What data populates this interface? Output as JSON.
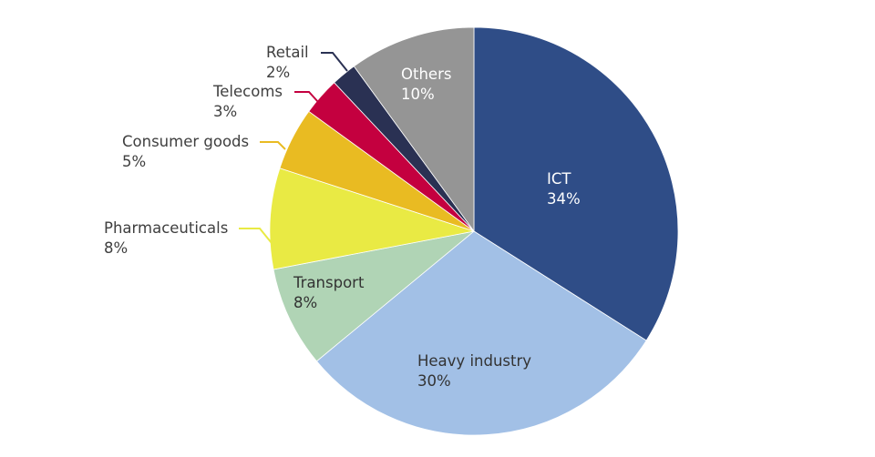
{
  "chart_data": {
    "type": "pie",
    "start_angle_deg": 0,
    "direction": "clockwise",
    "slices": [
      {
        "label": "ICT",
        "value": 34,
        "value_label": "34%",
        "color": "#2f4d87",
        "label_placement": "inside"
      },
      {
        "label": "Heavy industry",
        "value": 30,
        "value_label": "30%",
        "color": "#a2c0e6",
        "label_placement": "inside"
      },
      {
        "label": "Transport",
        "value": 8,
        "value_label": "8%",
        "color": "#b0d4b5",
        "label_placement": "inside"
      },
      {
        "label": "Pharmaceuticals",
        "value": 8,
        "value_label": "8%",
        "color": "#e9ea44",
        "label_placement": "outside"
      },
      {
        "label": "Consumer goods",
        "value": 5,
        "value_label": "5%",
        "color": "#e9bb22",
        "label_placement": "outside"
      },
      {
        "label": "Telecoms",
        "value": 3,
        "value_label": "3%",
        "color": "#c4003f",
        "label_placement": "outside"
      },
      {
        "label": "Retail",
        "value": 2,
        "value_label": "2%",
        "color": "#2a3153",
        "label_placement": "outside"
      },
      {
        "label": "Others",
        "value": 10,
        "value_label": "10%",
        "color": "#959595",
        "label_placement": "inside"
      }
    ],
    "title": "",
    "legend": "none"
  }
}
